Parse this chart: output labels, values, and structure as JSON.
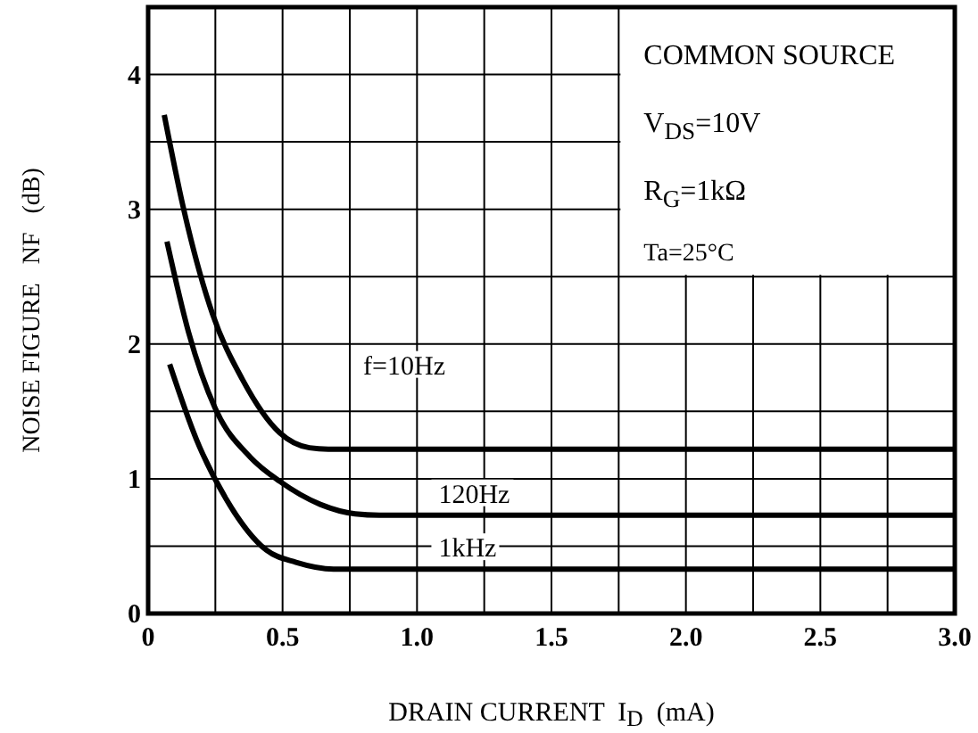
{
  "chart_data": {
    "type": "line",
    "xlabel": "DRAIN CURRENT  I$_{D}$  (mA)",
    "ylabel": "NOISE FIGURE   NF   (dB)",
    "annotations": [
      "COMMON SOURCE",
      "V$_{DS}$=10V",
      "R$_{G}$=1kΩ",
      "Ta=25°C"
    ],
    "series": [
      {
        "name": "f=10Hz",
        "color": "#000000",
        "x": [
          0.06,
          0.13,
          0.24,
          0.35,
          0.49,
          0.6,
          0.67,
          3.0
        ],
        "values": [
          3.7,
          3.02,
          2.22,
          1.74,
          1.34,
          1.23,
          1.22,
          1.22
        ]
      },
      {
        "name": "120Hz",
        "color": "#000000",
        "x": [
          0.07,
          0.15,
          0.25,
          0.38,
          0.49,
          0.64,
          0.77,
          0.86,
          3.0
        ],
        "values": [
          2.76,
          2.09,
          1.52,
          1.16,
          0.98,
          0.81,
          0.74,
          0.73,
          0.73
        ]
      },
      {
        "name": "1kHz",
        "color": "#000000",
        "x": [
          0.08,
          0.18,
          0.29,
          0.44,
          0.55,
          0.69,
          3.0
        ],
        "values": [
          1.85,
          1.29,
          0.85,
          0.47,
          0.38,
          0.33,
          0.33
        ]
      }
    ],
    "xlim": [
      0,
      3.0
    ],
    "ylim": [
      0,
      4.5
    ],
    "xticks": [
      0,
      {
        "value": 0.25,
        "label": null
      },
      0.5,
      {
        "value": 0.75,
        "label": null
      },
      {
        "value": 1,
        "label": "1.0"
      },
      {
        "value": 1.25,
        "label": null
      },
      1.5,
      {
        "value": 1.75,
        "label": null
      },
      {
        "value": 2,
        "label": "2.0"
      },
      {
        "value": 2.25,
        "label": null
      },
      2.5,
      {
        "value": 2.75,
        "label": null
      },
      {
        "value": 3,
        "label": "3.0"
      }
    ],
    "yticks": [
      0,
      {
        "value": 0.5,
        "label": null
      },
      1,
      {
        "value": 1.5,
        "label": null
      },
      2,
      {
        "value": 2.5,
        "label": null
      },
      3,
      {
        "value": 3.5,
        "label": null
      },
      4
    ],
    "grid": true,
    "marker": "none",
    "line_style": "solid"
  }
}
